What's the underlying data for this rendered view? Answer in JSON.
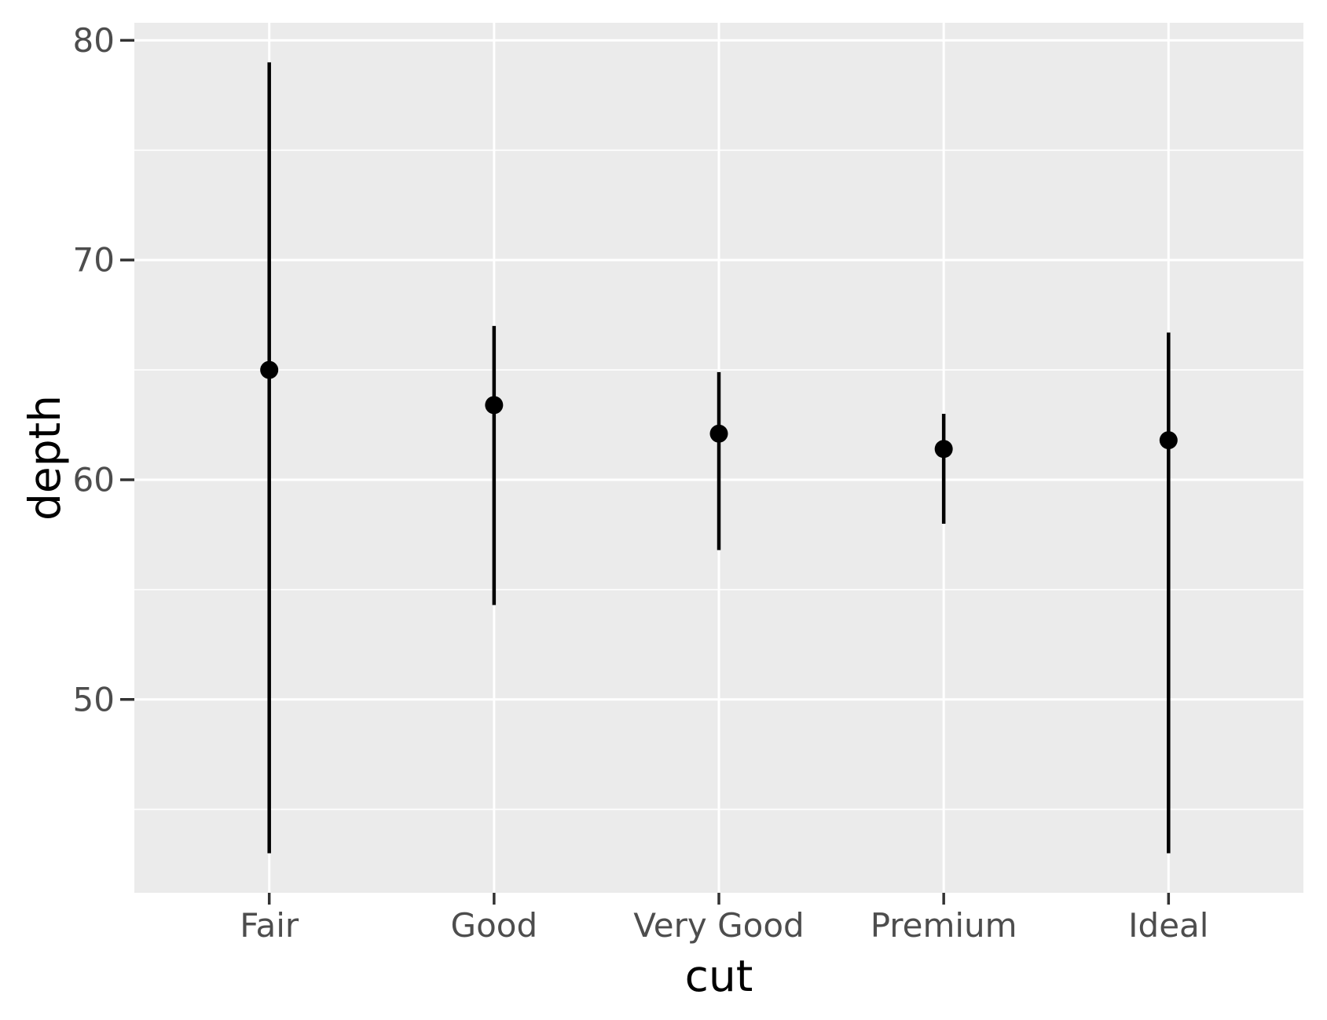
{
  "chart": {
    "ylabel": "depth",
    "xlabel": "cut"
  },
  "chart_data": {
    "type": "pointrange",
    "title": "",
    "xlabel": "cut",
    "ylabel": "depth",
    "categories": [
      "Fair",
      "Good",
      "Very Good",
      "Premium",
      "Ideal"
    ],
    "values": {
      "min": [
        43.0,
        54.3,
        56.8,
        58.0,
        43.0
      ],
      "median": [
        65.0,
        63.4,
        62.1,
        61.4,
        61.8
      ],
      "max": [
        79.0,
        67.0,
        64.9,
        63.0,
        66.7
      ]
    },
    "ylim": [
      41.2,
      80.8
    ],
    "yticks": [
      50,
      60,
      70,
      80
    ],
    "yminorticks": [
      45,
      55,
      65,
      75
    ],
    "grid": "horizontal major+minor white lines; vertical white line at each category",
    "legend": false,
    "legend_position": "none",
    "colors": {
      "plot_bg": "#FFFFFF",
      "panel_bg": "#EBEBEB",
      "grid": "#FFFFFF",
      "geom": "#000000",
      "tick_label": "#4D4D4D",
      "tick_mark": "#333333",
      "axis_title": "#000000"
    }
  }
}
